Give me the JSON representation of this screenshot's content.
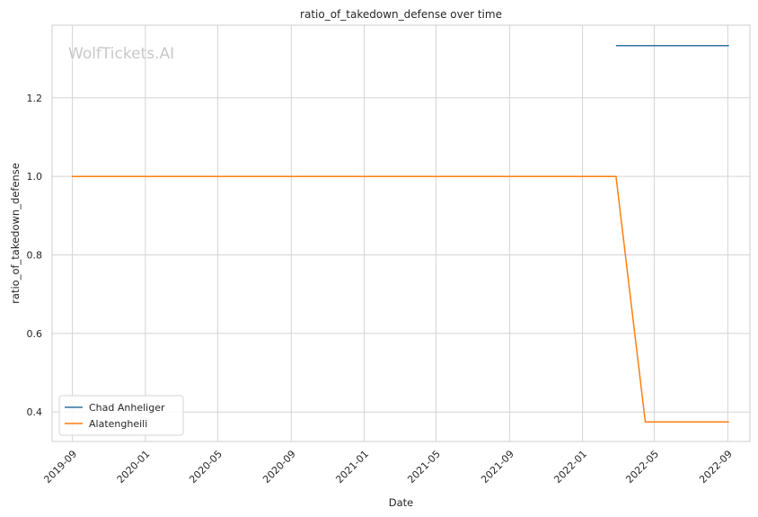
{
  "chart_data": {
    "type": "line",
    "title": "ratio_of_takedown_defense over time",
    "xlabel": "Date",
    "ylabel": "ratio_of_takedown_defense",
    "watermark": "WolfTickets.AI",
    "x_ticks": [
      "2019-09",
      "2020-01",
      "2020-05",
      "2020-09",
      "2021-01",
      "2021-05",
      "2021-09",
      "2022-01",
      "2022-05",
      "2022-09"
    ],
    "y_ticks": [
      "0.4",
      "0.6",
      "0.8",
      "1.0",
      "1.2"
    ],
    "ylim": [
      0.325,
      1.385
    ],
    "xlim": [
      "2019-07-29",
      "2022-10-08"
    ],
    "grid": true,
    "legend_position": "lower-left",
    "series": [
      {
        "name": "Chad Anheliger",
        "color": "#3274a1",
        "x": [
          "2022-02-26",
          "2022-09-03"
        ],
        "y": [
          1.333,
          1.333
        ]
      },
      {
        "name": "Alatengheili",
        "color": "#ff7f0e",
        "x": [
          "2019-08-31",
          "2022-02-26",
          "2022-04-16",
          "2022-09-03"
        ],
        "y": [
          1.0,
          1.0,
          0.375,
          0.375
        ]
      }
    ]
  }
}
